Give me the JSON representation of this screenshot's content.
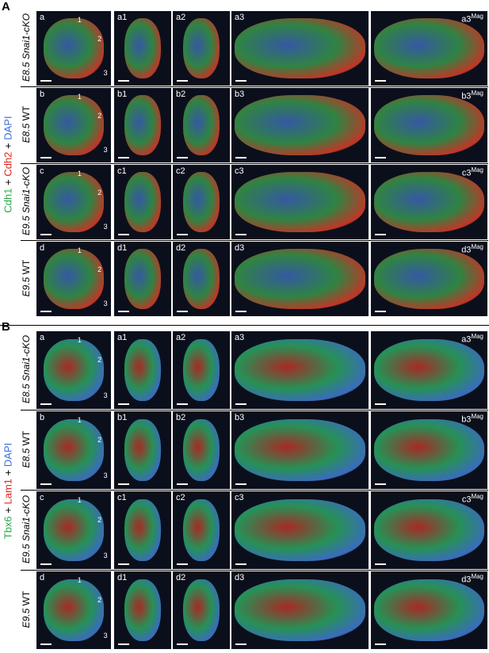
{
  "sections": [
    {
      "label": "A",
      "stain": [
        {
          "text": "Cdh1",
          "color": "#2aa84a"
        },
        {
          "text": "+",
          "color": "#000000"
        },
        {
          "text": "Cdh2",
          "color": "#e0251b"
        },
        {
          "text": "+",
          "color": "#000000"
        },
        {
          "text": "DAPI",
          "color": "#3a6fd8"
        }
      ],
      "plane_labels": [
        "1",
        "2",
        "3"
      ],
      "mag": "Mag",
      "rows": [
        {
          "stage": "E8.5",
          "genotype": "Snai1-cKO",
          "panels": [
            "a",
            "a1",
            "a2",
            "a3",
            "a3"
          ]
        },
        {
          "stage": "E8.5",
          "genotype": "WT",
          "panels": [
            "b",
            "b1",
            "b2",
            "b3",
            "b3"
          ]
        },
        {
          "stage": "E9.5",
          "genotype": "Snai1-cKO",
          "panels": [
            "c",
            "c1",
            "c2",
            "c3",
            "c3"
          ]
        },
        {
          "stage": "E9.5",
          "genotype": "WT",
          "panels": [
            "d",
            "d1",
            "d2",
            "d3",
            "d3"
          ]
        }
      ]
    },
    {
      "label": "B",
      "stain": [
        {
          "text": "Tbx6",
          "color": "#2aa84a"
        },
        {
          "text": "+",
          "color": "#000000"
        },
        {
          "text": "Lam1",
          "color": "#e0251b"
        },
        {
          "text": "+",
          "color": "#000000"
        },
        {
          "text": "DAPI",
          "color": "#3a6fd8"
        }
      ],
      "plane_labels": [
        "1",
        "2",
        "3"
      ],
      "mag": "Mag",
      "rows": [
        {
          "stage": "E8.5",
          "genotype": "Snai1-cKO",
          "panels": [
            "a",
            "a1",
            "a2",
            "a3",
            "a3"
          ]
        },
        {
          "stage": "E8.5",
          "genotype": "WT",
          "panels": [
            "b",
            "b1",
            "b2",
            "b3",
            "b3"
          ]
        },
        {
          "stage": "E9.5",
          "genotype": "Snai1-cKO",
          "panels": [
            "c",
            "c1",
            "c2",
            "c3",
            "c3"
          ]
        },
        {
          "stage": "E9.5",
          "genotype": "WT",
          "panels": [
            "d",
            "d1",
            "d2",
            "d3",
            "d3"
          ]
        }
      ]
    }
  ]
}
